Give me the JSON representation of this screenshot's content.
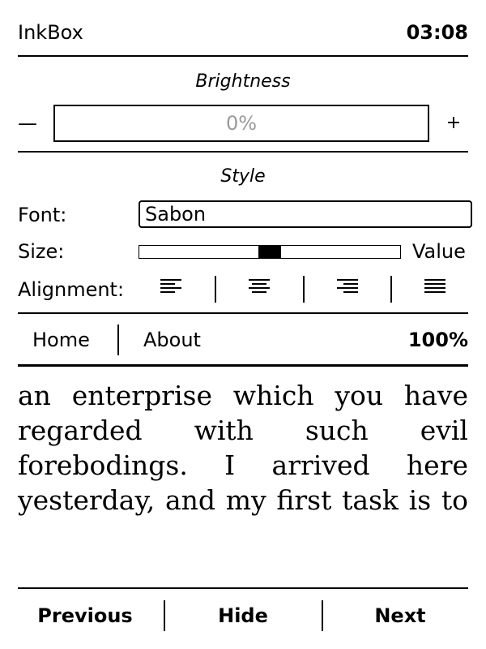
{
  "header": {
    "app_title": "InkBox",
    "clock": "03:08"
  },
  "brightness": {
    "title": "Brightness",
    "decrease_icon": "minus-icon",
    "decrease_symbol": "—",
    "increase_icon": "plus-icon",
    "increase_symbol": "+",
    "value_text": "0%",
    "level": 0
  },
  "style": {
    "title": "Style",
    "font_label": "Font:",
    "font_value": "Sabon",
    "size_label": "Size:",
    "size_level": 0.5,
    "size_value_label": "Value",
    "alignment_label": "Alignment:",
    "alignment_options": [
      {
        "icon": "align-left-icon"
      },
      {
        "icon": "align-center-icon"
      },
      {
        "icon": "align-right-icon"
      },
      {
        "icon": "align-justify-icon"
      }
    ]
  },
  "nav": {
    "home_label": "Home",
    "about_label": "About",
    "progress": "100%"
  },
  "reader": {
    "lines": [
      "an enterprise which you have",
      "regarded with such evil",
      "forebodings. I arrived here",
      "yesterday, and my first task is to"
    ]
  },
  "footer": {
    "previous_label": "Previous",
    "hide_label": "Hide",
    "next_label": "Next"
  }
}
